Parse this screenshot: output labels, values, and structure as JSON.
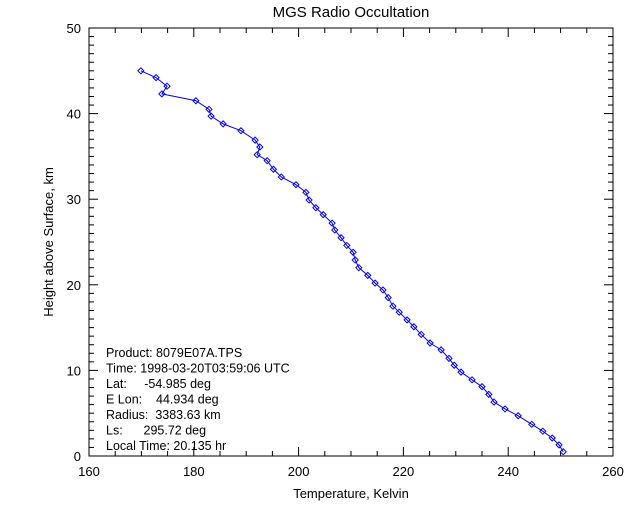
{
  "chart_data": {
    "type": "line",
    "title": "MGS Radio Occultation",
    "xlabel": "Temperature, Kelvin",
    "ylabel": "Height above Surface, km",
    "xlim": [
      160,
      260
    ],
    "ylim": [
      0,
      50
    ],
    "xticks": [
      160,
      180,
      200,
      220,
      240,
      260
    ],
    "yticks": [
      0,
      10,
      20,
      30,
      40,
      50
    ],
    "x_minor_step": 5,
    "y_minor_step": 1,
    "grid": false,
    "marker": "diamond",
    "line_color": "#0000ff",
    "points": [
      [
        169.9,
        45.0
      ],
      [
        172.8,
        44.2
      ],
      [
        174.9,
        43.2
      ],
      [
        173.9,
        42.3
      ],
      [
        180.4,
        41.5
      ],
      [
        182.9,
        40.5
      ],
      [
        183.3,
        39.7
      ],
      [
        185.6,
        38.8
      ],
      [
        189.0,
        38.0
      ],
      [
        191.7,
        36.9
      ],
      [
        192.6,
        36.1
      ],
      [
        192.1,
        35.2
      ],
      [
        194.0,
        34.5
      ],
      [
        195.2,
        33.5
      ],
      [
        196.7,
        32.6
      ],
      [
        199.5,
        31.7
      ],
      [
        201.4,
        30.8
      ],
      [
        202.0,
        29.9
      ],
      [
        203.3,
        29.0
      ],
      [
        204.7,
        28.2
      ],
      [
        206.4,
        27.2
      ],
      [
        206.9,
        26.4
      ],
      [
        208.1,
        25.5
      ],
      [
        209.2,
        24.6
      ],
      [
        210.4,
        23.8
      ],
      [
        210.8,
        22.9
      ],
      [
        211.5,
        22.0
      ],
      [
        213.2,
        21.1
      ],
      [
        214.6,
        20.2
      ],
      [
        216.1,
        19.4
      ],
      [
        217.1,
        18.5
      ],
      [
        218.0,
        17.5
      ],
      [
        219.2,
        16.8
      ],
      [
        220.7,
        15.9
      ],
      [
        222.0,
        15.1
      ],
      [
        223.4,
        14.2
      ],
      [
        225.1,
        13.2
      ],
      [
        227.2,
        12.4
      ],
      [
        228.7,
        11.4
      ],
      [
        229.7,
        10.6
      ],
      [
        231.0,
        9.8
      ],
      [
        233.1,
        8.9
      ],
      [
        235.0,
        8.1
      ],
      [
        236.3,
        7.2
      ],
      [
        237.3,
        6.3
      ],
      [
        239.4,
        5.5
      ],
      [
        241.9,
        4.7
      ],
      [
        244.5,
        3.7
      ],
      [
        246.6,
        2.9
      ],
      [
        248.4,
        2.1
      ],
      [
        249.7,
        1.3
      ],
      [
        250.5,
        0.5
      ]
    ],
    "annotations": [
      "Product: 8079E07A.TPS",
      "Time: 1998-03-20T03:59:06 UTC",
      "Lat:     -54.985 deg",
      "E Lon:    44.934 deg",
      "Radius:  3383.63 km",
      "Ls:      295.72 deg",
      "Local Time: 20.135 hr"
    ]
  }
}
